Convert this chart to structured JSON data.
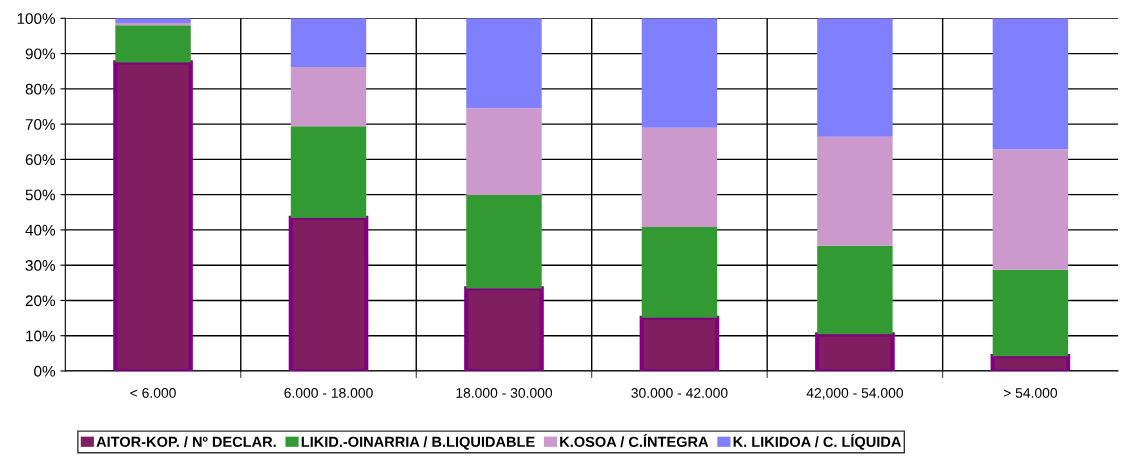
{
  "chart_data": {
    "type": "bar",
    "stacked": true,
    "categories": [
      "< 6.000",
      "6.000 - 18.000",
      "18.000 - 30.000",
      "30.000 - 42.000",
      "42,000 - 54.000",
      "> 54.000"
    ],
    "series": [
      {
        "name": "AITOR-KOP. / Nº DECLAR.",
        "color": "#7f1f5f",
        "values": [
          87.5,
          43.4,
          23.4,
          15.1,
          10.4,
          4.2
        ]
      },
      {
        "name": "LIKID.-OINARRIA / B.LIQUIDABLE",
        "color": "#339933",
        "values": [
          10.5,
          26.0,
          26.5,
          25.7,
          25.1,
          24.5
        ]
      },
      {
        "name": "K.OSOA / C.ÍNTEGRA",
        "color": "#cc99cc",
        "values": [
          0.7,
          16.8,
          24.6,
          28.2,
          30.9,
          34.2
        ]
      },
      {
        "name": "K. LIKIDOA / C. LÍQUIDA",
        "color": "#8080ff",
        "values": [
          1.3,
          13.8,
          25.5,
          31.0,
          33.6,
          37.1
        ]
      }
    ],
    "ylim": [
      0,
      100
    ],
    "yticks": [
      {
        "value": 0,
        "label": "0%"
      },
      {
        "value": 10,
        "label": "10%"
      },
      {
        "value": 20,
        "label": "20%"
      },
      {
        "value": 30,
        "label": "30%"
      },
      {
        "value": 40,
        "label": "40%"
      },
      {
        "value": 50,
        "label": "50%"
      },
      {
        "value": 60,
        "label": "60%"
      },
      {
        "value": 70,
        "label": "70%"
      },
      {
        "value": 80,
        "label": "80%"
      },
      {
        "value": 90,
        "label": "90%"
      },
      {
        "value": 100,
        "label": "100%"
      }
    ],
    "grid": true,
    "legend": "bottom"
  }
}
